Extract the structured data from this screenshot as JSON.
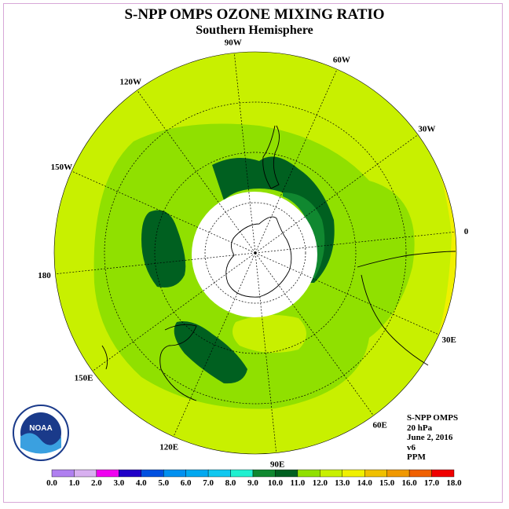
{
  "header": {
    "title": "S-NPP OMPS OZONE MIXING RATIO",
    "subtitle": "Southern Hemisphere"
  },
  "longitude_labels": [
    {
      "label": "90W",
      "lon": -90
    },
    {
      "label": "60W",
      "lon": -60
    },
    {
      "label": "30W",
      "lon": -30
    },
    {
      "label": "0",
      "lon": 0
    },
    {
      "label": "30E",
      "lon": 30
    },
    {
      "label": "60E",
      "lon": 60
    },
    {
      "label": "90E",
      "lon": 90
    },
    {
      "label": "120E",
      "lon": 120
    },
    {
      "label": "150E",
      "lon": 150
    },
    {
      "label": "180",
      "lon": 180
    },
    {
      "label": "150W",
      "lon": -150
    },
    {
      "label": "120W",
      "lon": -120
    }
  ],
  "info": {
    "instrument": "S-NPP OMPS",
    "pressure": "20 hPa",
    "date": "June 2, 2016",
    "version": "v6",
    "units": "PPM"
  },
  "logo": {
    "text": "NOAA",
    "ring_text": "NATIONAL OCEANIC AND ATMOSPHERIC ADMINISTRATION · U.S. DEPARTMENT OF COMMERCE"
  },
  "colorbar": {
    "labels": [
      "0.0",
      "1.0",
      "2.0",
      "3.0",
      "4.0",
      "5.0",
      "6.0",
      "7.0",
      "8.0",
      "9.0",
      "10.0",
      "11.0",
      "12.0",
      "13.0",
      "14.0",
      "15.0",
      "16.0",
      "17.0",
      "18.0"
    ],
    "colors": [
      "#b080f0",
      "#d8b0f0",
      "#f000f0",
      "#2000c8",
      "#0050e0",
      "#0090f0",
      "#00a8f0",
      "#10c8f0",
      "#20f0d0",
      "#108830",
      "#006020",
      "#90e000",
      "#c8f000",
      "#f0f000",
      "#f0c000",
      "#f09800",
      "#f06000",
      "#f00000",
      "#805838"
    ]
  },
  "map": {
    "background_field_color": "#c8f000",
    "polar_night_color": "#ffffff",
    "contour_colors": {
      "level_10_11": "#90e000",
      "level_9_10": "#108830",
      "level_8_9": "#006020",
      "level_12_13": "#f0f000"
    }
  }
}
